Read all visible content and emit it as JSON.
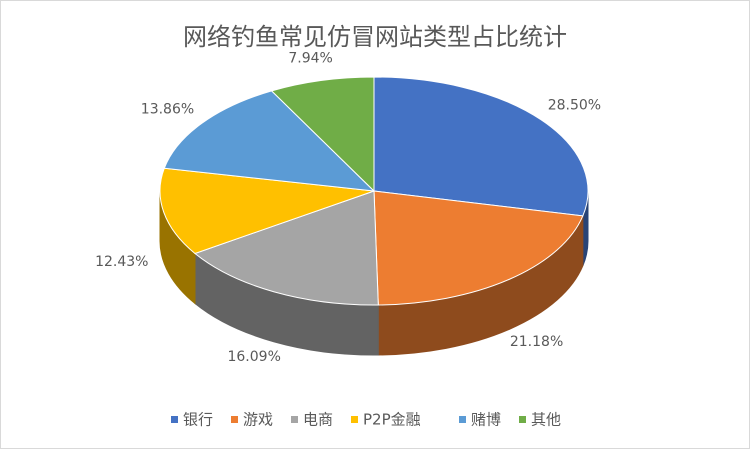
{
  "chart_data": {
    "type": "pie",
    "title": "网络钓鱼常见仿冒网站类型占比统计",
    "categories": [
      "银行",
      "游戏",
      "电商",
      "P2P金融",
      "赌博",
      "其他"
    ],
    "values": [
      28.5,
      21.18,
      16.09,
      12.43,
      13.86,
      7.94
    ],
    "value_labels": [
      "28.50%",
      "21.18%",
      "16.09%",
      "12.43%",
      "13.86%",
      "7.94%"
    ],
    "colors": [
      "#4472c4",
      "#ed7d31",
      "#a5a5a5",
      "#ffc000",
      "#5b9bd5",
      "#70ad47"
    ],
    "legend": "bottom"
  }
}
